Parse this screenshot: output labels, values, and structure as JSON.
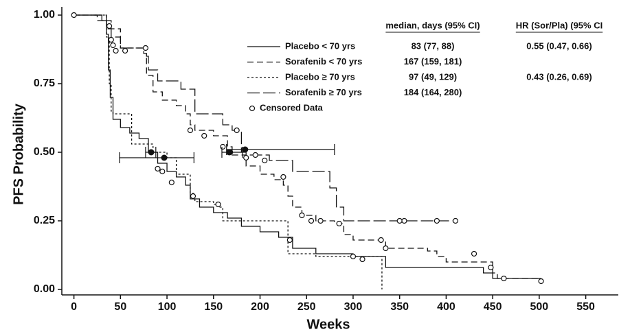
{
  "chart_data": {
    "type": "step",
    "x_label": "Weeks",
    "y_label": "PFS Probability",
    "xlim": [
      -13,
      585
    ],
    "ylim": [
      -0.02,
      1.03
    ],
    "xticks": [
      0,
      50,
      100,
      150,
      200,
      250,
      300,
      350,
      400,
      450,
      500,
      550
    ],
    "yticks": [
      {
        "value": 0,
        "label": "0.00"
      },
      {
        "value": 0.25,
        "label": "0.25"
      },
      {
        "value": 0.5,
        "label": "0.50"
      },
      {
        "value": 0.75,
        "label": "0.75"
      },
      {
        "value": 1,
        "label": "1.00"
      }
    ],
    "series": [
      {
        "name": "Placebo < 70 yrs",
        "color": "#111111",
        "dash": "none",
        "x": [
          0,
          30,
          35,
          37,
          39,
          42,
          50,
          60,
          70,
          80,
          90,
          100,
          110,
          120,
          125,
          135,
          150,
          165,
          180,
          200,
          220,
          235,
          260,
          300,
          335,
          440,
          450,
          502
        ],
        "values": [
          1.0,
          0.98,
          0.93,
          0.8,
          0.7,
          0.62,
          0.59,
          0.57,
          0.55,
          0.5,
          0.46,
          0.43,
          0.41,
          0.38,
          0.33,
          0.3,
          0.28,
          0.26,
          0.23,
          0.21,
          0.19,
          0.15,
          0.13,
          0.12,
          0.08,
          0.06,
          0.04,
          0.04
        ]
      },
      {
        "name": "Sorafenib < 70 yrs",
        "color": "#111111",
        "dash": "9 5",
        "x": [
          0,
          25,
          40,
          50,
          75,
          78,
          85,
          95,
          110,
          120,
          125,
          130,
          150,
          165,
          170,
          185,
          200,
          215,
          225,
          230,
          235,
          245,
          260,
          280,
          290,
          300,
          335,
          380,
          390,
          400,
          450,
          455,
          502
        ],
        "values": [
          1.0,
          0.98,
          0.95,
          0.88,
          0.86,
          0.78,
          0.72,
          0.69,
          0.67,
          0.64,
          0.6,
          0.58,
          0.56,
          0.52,
          0.49,
          0.45,
          0.42,
          0.4,
          0.38,
          0.34,
          0.3,
          0.27,
          0.25,
          0.24,
          0.2,
          0.18,
          0.15,
          0.14,
          0.12,
          0.1,
          0.06,
          0.04,
          0.04
        ]
      },
      {
        "name": "Placebo ≥ 70 yrs",
        "color": "#111111",
        "dash": "3 3",
        "x": [
          0,
          35,
          38,
          40,
          42,
          62,
          85,
          100,
          110,
          125,
          130,
          150,
          155,
          160,
          230,
          260,
          330,
          331
        ],
        "values": [
          1.0,
          0.92,
          0.75,
          0.65,
          0.64,
          0.53,
          0.5,
          0.48,
          0.42,
          0.35,
          0.32,
          0.31,
          0.3,
          0.25,
          0.13,
          0.12,
          0.12,
          0.0
        ]
      },
      {
        "name": "Sorafenib ≥ 70 yrs",
        "color": "#111111",
        "dash": "18 5",
        "x": [
          0,
          35,
          40,
          50,
          78,
          80,
          90,
          115,
          130,
          160,
          170,
          180,
          185,
          210,
          235,
          275,
          282,
          290,
          410
        ],
        "values": [
          1.0,
          0.95,
          0.92,
          0.88,
          0.85,
          0.8,
          0.76,
          0.73,
          0.64,
          0.6,
          0.58,
          0.5,
          0.49,
          0.47,
          0.43,
          0.37,
          0.3,
          0.25,
          0.25
        ]
      }
    ],
    "censored": {
      "name": "Censored Data",
      "color": "#111111",
      "x": [
        0,
        38,
        40,
        42,
        45,
        55,
        77,
        90,
        95,
        105,
        125,
        128,
        140,
        155,
        160,
        168,
        175,
        185,
        195,
        205,
        225,
        232,
        245,
        255,
        265,
        285,
        300,
        310,
        330,
        335,
        350,
        355,
        390,
        410,
        430,
        448,
        462,
        502
      ],
      "values": [
        1.0,
        0.96,
        0.91,
        0.89,
        0.87,
        0.87,
        0.88,
        0.44,
        0.43,
        0.39,
        0.58,
        0.34,
        0.56,
        0.31,
        0.52,
        0.5,
        0.58,
        0.48,
        0.49,
        0.47,
        0.41,
        0.18,
        0.27,
        0.25,
        0.25,
        0.24,
        0.12,
        0.11,
        0.18,
        0.15,
        0.25,
        0.25,
        0.25,
        0.25,
        0.13,
        0.08,
        0.04,
        0.03
      ]
    },
    "medians": {
      "x": [
        83,
        167,
        97,
        184
      ],
      "y": [
        0.5,
        0.5,
        0.48,
        0.51
      ],
      "lo": [
        77,
        159,
        49,
        164
      ],
      "hi": [
        88,
        181,
        129,
        280
      ]
    },
    "table": {
      "headers": [
        "median, days (95% CI)",
        "HR (Sor/Pla) (95% CI"
      ],
      "rows": [
        [
          "83 (77, 88)",
          "0.55 (0.47, 0.66)"
        ],
        [
          "167 (159, 181)",
          null
        ],
        [
          "97 (49, 129)",
          "0.43 (0.26, 0.69)"
        ],
        [
          "184 (164, 280)",
          null
        ]
      ]
    }
  }
}
